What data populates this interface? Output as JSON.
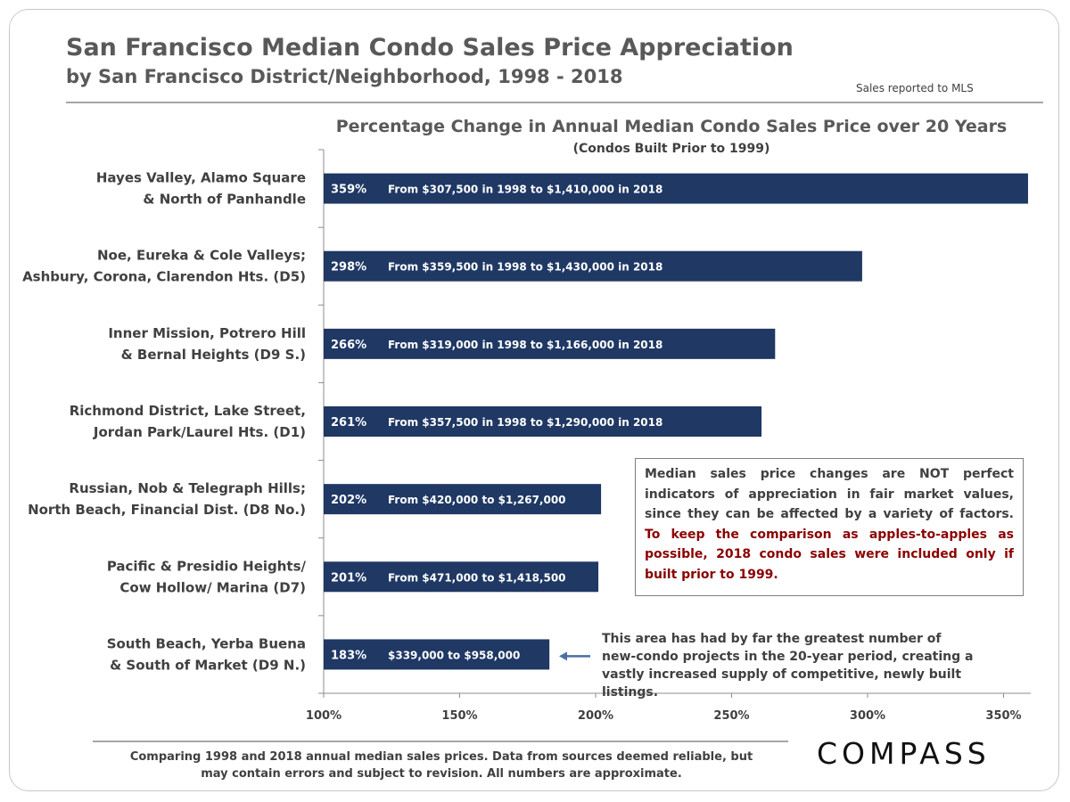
{
  "header": {
    "title": "San Francisco Median Condo Sales Price Appreciation",
    "subtitle": "by San Francisco District/Neighborhood,  1998 - 2018",
    "source_note": "Sales reported to MLS"
  },
  "chart_data": {
    "type": "bar",
    "orientation": "horizontal",
    "title": "Percentage Change in Annual Median Condo Sales Price over 20 Years",
    "subtitle": "(Condos Built Prior to 1999)",
    "xlim": [
      100,
      360
    ],
    "xticks": [
      100,
      150,
      200,
      250,
      300,
      350
    ],
    "tick_labels": [
      "100%",
      "150%",
      "200%",
      "250%",
      "300%",
      "350%"
    ],
    "bar_color": "#1f3864",
    "categories": [
      [
        "Hayes Valley, Alamo Square",
        "& North of Panhandle"
      ],
      [
        "Noe, Eureka & Cole Valleys;",
        "Ashbury, Corona, Clarendon Hts. (D5)"
      ],
      [
        "Inner Mission, Potrero Hill",
        "& Bernal Heights (D9 S.)"
      ],
      [
        "Richmond District, Lake Street,",
        "Jordan Park/Laurel Hts. (D1)"
      ],
      [
        "Russian, Nob & Telegraph Hills;",
        "North Beach, Financial Dist. (D8 No.)"
      ],
      [
        "Pacific & Presidio Heights/",
        "Cow Hollow/ Marina (D7)"
      ],
      [
        "South Beach, Yerba Buena",
        "& South of Market (D9 N.)"
      ]
    ],
    "values": [
      359,
      298,
      266,
      261,
      202,
      201,
      183
    ],
    "value_labels": [
      "359%",
      "298%",
      "266%",
      "261%",
      "202%",
      "201%",
      "183%"
    ],
    "annotations": [
      "From $307,500 in 1998 to $1,410,000 in 2018",
      "From $359,500 in 1998 to $1,430,000 in 2018",
      "From $319,000 in 1998 to $1,166,000 in 2018",
      "From $357,500 in 1998 to $1,290,000 in 2018",
      "From $420,000 to $1,267,000",
      "From $471,000 to $1,418,500",
      "$339,000 to $958,000"
    ]
  },
  "note_box": {
    "text": "Median sales price changes are NOT perfect indicators of appreciation in fair market values, since they can be affected by a variety of factors.",
    "highlight": "To keep the comparison as apples-to-apples as possible, 2018  condo sales were included only if built prior to 1999."
  },
  "callout": {
    "text": "This area has had by far the greatest number of new-condo projects in the 20-year period, creating a vastly increased supply of competitive, newly built listings."
  },
  "footer": {
    "note": "Comparing 1998 and 2018 annual median sales prices. Data from sources deemed reliable, but may contain errors and subject to revision. All numbers are approximate.",
    "brand": "COMPASS"
  },
  "colors": {
    "bar": "#1f3864",
    "highlight_text": "#8b0000",
    "arrow": "#4a6fa5"
  }
}
